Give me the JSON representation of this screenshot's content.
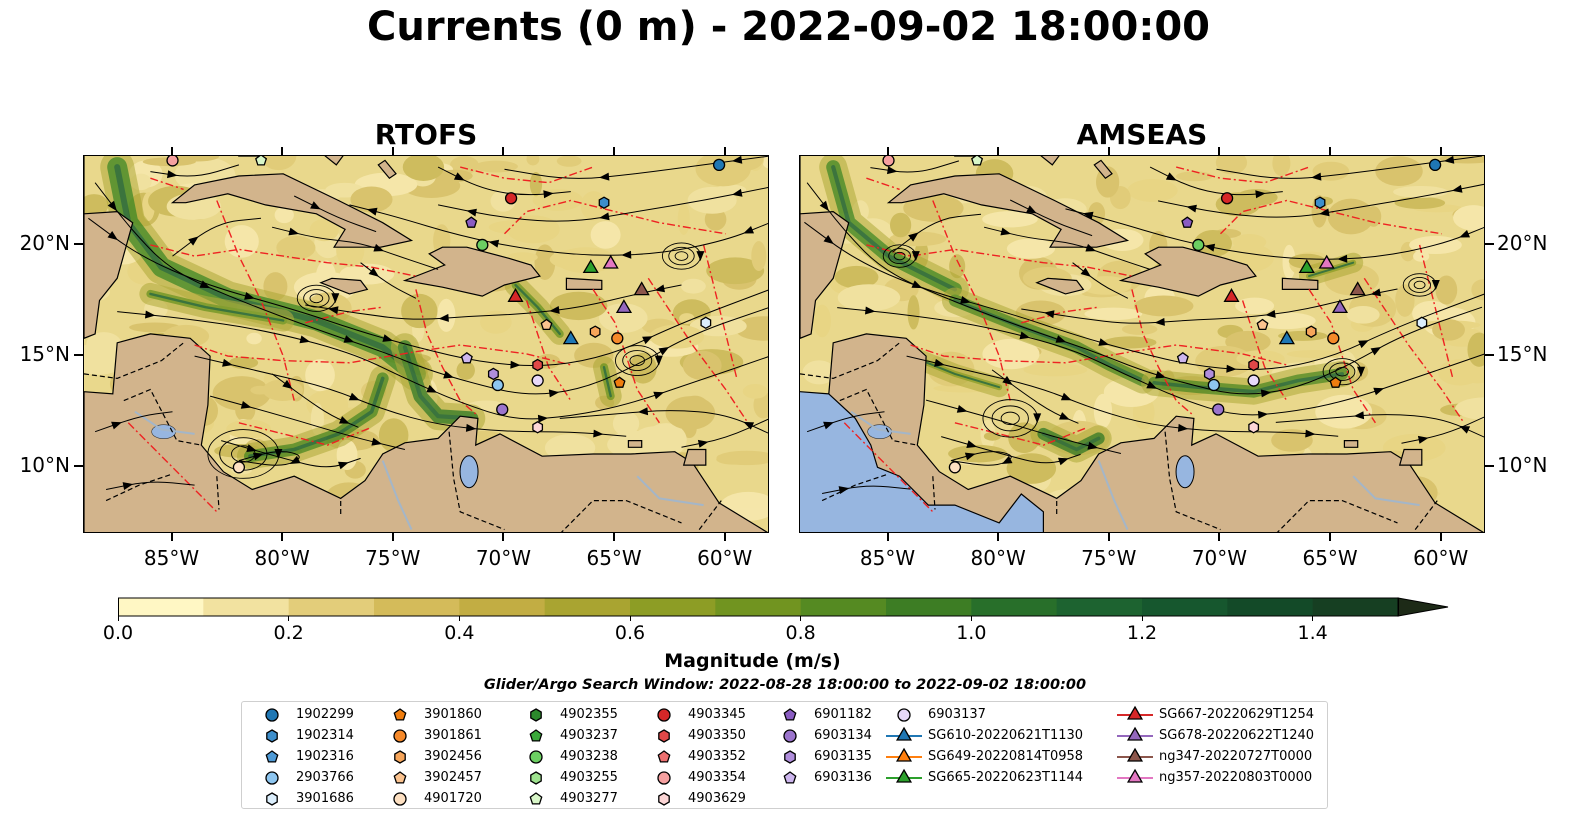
{
  "title": "Currents (0 m) - 2022-09-02 18:00:00",
  "panels": [
    {
      "title": "RTOFS",
      "side": "left"
    },
    {
      "title": "AMSEAS",
      "side": "right"
    }
  ],
  "lon_ticks": [
    "85°W",
    "80°W",
    "75°W",
    "70°W",
    "65°W",
    "60°W"
  ],
  "lat_ticks": [
    "20°N",
    "15°N",
    "10°N"
  ],
  "map_extent": {
    "lon": [
      -89,
      -58
    ],
    "lat": [
      7,
      24
    ]
  },
  "colorbar": {
    "label": "Magnitude (m/s)",
    "ticks": [
      "0.0",
      "0.2",
      "0.4",
      "0.6",
      "0.8",
      "1.0",
      "1.2",
      "1.4"
    ],
    "range": [
      0,
      1.5
    ],
    "extend": "max",
    "colors": [
      "#fff7c4",
      "#f2e2a0",
      "#e3cd7a",
      "#d4bb5a",
      "#c2ad43",
      "#a9a431",
      "#8d9d25",
      "#719420",
      "#558a22",
      "#3d7d24",
      "#286f2a",
      "#1d6330",
      "#16572e",
      "#134a28",
      "#163f22",
      "#1c341c",
      "#1d2a17"
    ]
  },
  "colors": {
    "land": "#d2b48c",
    "ocean_blue": "#97b6e0",
    "eez": "#ee2222",
    "river": "#a4b6c8"
  },
  "search_window": "Glider/Argo Search Window: 2022-08-28 18:00:00 to 2022-09-02 18:00:00",
  "legend": {
    "columns": [
      [
        {
          "label": "1902299",
          "marker": "circle",
          "color": "#1f77b4"
        },
        {
          "label": "1902314",
          "marker": "hexagon",
          "color": "#3d8ecb"
        },
        {
          "label": "1902316",
          "marker": "pentagon",
          "color": "#4e9ad6"
        },
        {
          "label": "2903766",
          "marker": "circle",
          "color": "#8ec6f0"
        },
        {
          "label": "3901686",
          "marker": "hexagon",
          "color": "#dbeefc"
        }
      ],
      [
        {
          "label": "3901860",
          "marker": "pentagon",
          "color": "#f07d0e"
        },
        {
          "label": "3901861",
          "marker": "circle",
          "color": "#f5892a"
        },
        {
          "label": "3902456",
          "marker": "hexagon",
          "color": "#f6a55a"
        },
        {
          "label": "3902457",
          "marker": "pentagon",
          "color": "#fbc38f"
        },
        {
          "label": "4901720",
          "marker": "circle",
          "color": "#fde0c2"
        }
      ],
      [
        {
          "label": "4902355",
          "marker": "hexagon",
          "color": "#2c8a2c"
        },
        {
          "label": "4903237",
          "marker": "pentagon",
          "color": "#3aa83a"
        },
        {
          "label": "4903238",
          "marker": "circle",
          "color": "#6ccf62"
        },
        {
          "label": "4903255",
          "marker": "hexagon",
          "color": "#9fe38f"
        },
        {
          "label": "4903277",
          "marker": "pentagon",
          "color": "#d8f6c8"
        }
      ],
      [
        {
          "label": "4903345",
          "marker": "circle",
          "color": "#d62728"
        },
        {
          "label": "4903350",
          "marker": "hexagon",
          "color": "#e04848"
        },
        {
          "label": "4903352",
          "marker": "pentagon",
          "color": "#ec7070"
        },
        {
          "label": "4903354",
          "marker": "circle",
          "color": "#f5a0a0"
        },
        {
          "label": "4903629",
          "marker": "hexagon",
          "color": "#fcd6d6"
        }
      ],
      [
        {
          "label": "6901182",
          "marker": "pentagon",
          "color": "#8a5cc2"
        },
        {
          "label": "6903134",
          "marker": "circle",
          "color": "#9b74cc"
        },
        {
          "label": "6903135",
          "marker": "hexagon",
          "color": "#b08edc"
        },
        {
          "label": "6903136",
          "marker": "pentagon",
          "color": "#cdb6ee"
        }
      ],
      [
        {
          "label": "6903137",
          "marker": "circle",
          "color": "#e7d8f8"
        },
        {
          "label": "SG610-20220621T1130",
          "marker": "triangle-line",
          "color": "#1f77b4"
        },
        {
          "label": "SG649-20220814T0958",
          "marker": "triangle-line",
          "color": "#ff7f0e"
        },
        {
          "label": "SG665-20220623T1144",
          "marker": "triangle-line",
          "color": "#2ca02c"
        }
      ],
      [
        {
          "label": "SG667-20220629T1254",
          "marker": "triangle-line",
          "color": "#d62728"
        },
        {
          "label": "SG678-20220622T1240",
          "marker": "triangle-line",
          "color": "#9467bd"
        },
        {
          "label": "ng347-20220727T0000",
          "marker": "triangle-line",
          "color": "#8c564b"
        },
        {
          "label": "ng357-20220803T0000",
          "marker": "triangle-line",
          "color": "#e377c2"
        }
      ]
    ]
  },
  "observations": [
    {
      "id": "1902299",
      "lon": -60.3,
      "lat": 23.6
    },
    {
      "id": "1902314",
      "lon": -65.5,
      "lat": 21.9
    },
    {
      "id": "4903345",
      "lon": -69.7,
      "lat": 22.1
    },
    {
      "id": "6901182",
      "lon": -71.5,
      "lat": 21.0
    },
    {
      "id": "4903238",
      "lon": -71.0,
      "lat": 20.0
    },
    {
      "id": "4903350",
      "lon": -68.5,
      "lat": 14.6
    },
    {
      "id": "6903135",
      "lon": -70.5,
      "lat": 14.2
    },
    {
      "id": "2903766",
      "lon": -70.3,
      "lat": 13.7
    },
    {
      "id": "6903137",
      "lon": -68.5,
      "lat": 13.9
    },
    {
      "id": "6903134",
      "lon": -70.1,
      "lat": 12.6
    },
    {
      "id": "4903629",
      "lon": -68.5,
      "lat": 11.8
    },
    {
      "id": "6903136",
      "lon": -71.7,
      "lat": 14.9
    },
    {
      "id": "3902457",
      "lon": -68.1,
      "lat": 16.4
    },
    {
      "id": "3902456",
      "lon": -65.9,
      "lat": 16.1
    },
    {
      "id": "3901861",
      "lon": -64.9,
      "lat": 15.8
    },
    {
      "id": "3901860",
      "lon": -64.8,
      "lat": 13.8
    },
    {
      "id": "3901686",
      "lon": -60.9,
      "lat": 16.5
    },
    {
      "id": "4901720",
      "lon": -82.0,
      "lat": 10.0
    },
    {
      "id": "4903354",
      "lon": -85.0,
      "lat": 23.8
    },
    {
      "id": "4903277",
      "lon": -81.0,
      "lat": 23.8
    }
  ],
  "gliders": [
    {
      "id": "SG610-20220621T1130",
      "lon": -67.0,
      "lat": 15.7
    },
    {
      "id": "SG665-20220623T1144",
      "lon": -66.1,
      "lat": 18.9
    },
    {
      "id": "SG667-20220629T1254",
      "lon": -69.5,
      "lat": 17.6
    },
    {
      "id": "SG678-20220622T1240",
      "lon": -64.6,
      "lat": 17.1
    },
    {
      "id": "ng347-20220727T0000",
      "lon": -63.8,
      "lat": 17.9
    },
    {
      "id": "ng357-20220803T0000",
      "lon": -65.2,
      "lat": 19.1
    }
  ]
}
